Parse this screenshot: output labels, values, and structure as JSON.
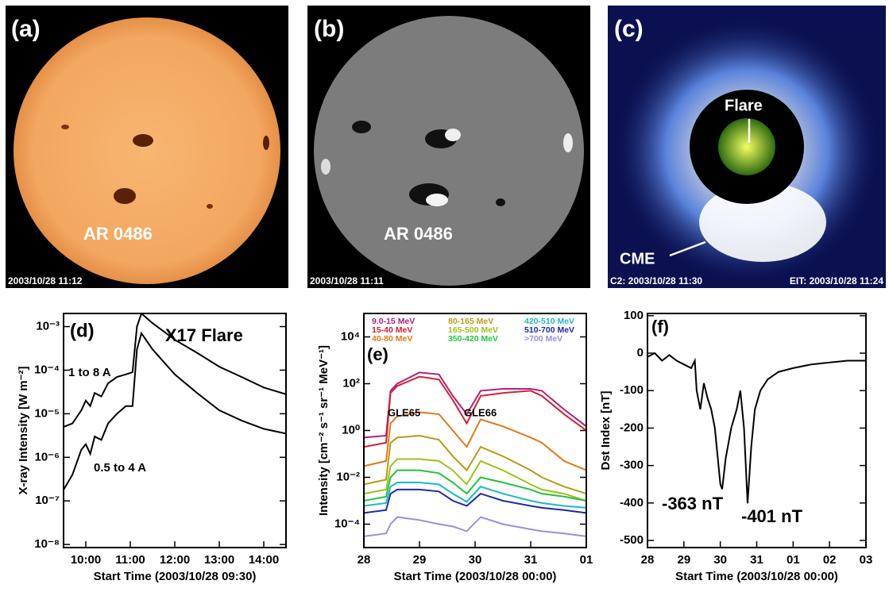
{
  "images": [
    {
      "label": "(a)",
      "annotation": "AR 0486",
      "timestamp": "2003/10/28 11:12"
    },
    {
      "label": "(b)",
      "annotation": "AR 0486",
      "timestamp": "2003/10/28 11:11"
    },
    {
      "label": "(c)",
      "annotations": [
        "Flare",
        "CME"
      ],
      "timestamps": [
        "C2: 2003/10/28 11:30",
        "EIT: 2003/10/28 11:24"
      ]
    }
  ],
  "chart_data": [
    {
      "type": "line",
      "log_y": true,
      "ylabel": "X-ray Intensity [W m⁻²]",
      "xlabel": "Start Time (2003/10/28 09:30)",
      "annotations": [
        "(d)",
        "X17 Flare"
      ],
      "xlim": [
        9.5,
        14.5
      ],
      "xticks": [
        {
          "value": 10,
          "label": "10:00"
        },
        {
          "value": 11,
          "label": "11:00"
        },
        {
          "value": 12,
          "label": "12:00"
        },
        {
          "value": 13,
          "label": "13:00"
        },
        {
          "value": 14,
          "label": "14:00"
        }
      ],
      "ylim": [
        8.5e-09,
        0.002
      ],
      "yticks": [
        {
          "value": 1e-08,
          "label": "10⁻⁸"
        },
        {
          "value": 1e-07,
          "label": "10⁻⁷"
        },
        {
          "value": 1e-06,
          "label": "10⁻⁶"
        },
        {
          "value": 1e-05,
          "label": "10⁻⁵"
        },
        {
          "value": 0.0001,
          "label": "10⁻⁴"
        },
        {
          "value": 0.001,
          "label": "10⁻³"
        }
      ],
      "x": [
        9.5,
        9.7,
        9.9,
        10.0,
        10.1,
        10.2,
        10.35,
        10.5,
        10.7,
        10.9,
        11.05,
        11.15,
        11.25,
        11.5,
        12,
        12.5,
        13,
        13.5,
        14,
        14.5
      ],
      "series": [
        {
          "name": "1 to 8 A",
          "color": "#000000",
          "values": [
            5e-06,
            6e-06,
            1.2e-05,
            2e-05,
            1.5e-05,
            3e-05,
            2.5e-05,
            5e-05,
            7e-05,
            8e-05,
            9e-05,
            0.001,
            0.002,
            0.0012,
            0.0005,
            0.00025,
            0.00012,
            7e-05,
            4e-05,
            2.8e-05
          ]
        },
        {
          "name": "0.5 to 4 A",
          "color": "#000000",
          "values": [
            1.8e-07,
            4e-07,
            1.5e-06,
            2e-06,
            1.2e-06,
            3e-06,
            2.5e-06,
            6e-06,
            1e-05,
            1.5e-05,
            1.5e-05,
            0.0003,
            0.0007,
            0.0003,
            8e-05,
            3e-05,
            1.2e-05,
            7e-06,
            4.5e-06,
            3.5e-06
          ]
        }
      ]
    },
    {
      "type": "line",
      "log_y": true,
      "ylabel": "Intensity [cm⁻² s⁻¹ sr⁻¹ MeV⁻¹]",
      "xlabel": "Start Time (2003/10/28 00:00)",
      "annotations": [
        "(e)",
        "GLE65",
        "GLE66"
      ],
      "xlim": [
        0,
        4
      ],
      "xticks": [
        {
          "value": 0,
          "label": "28"
        },
        {
          "value": 1,
          "label": "29"
        },
        {
          "value": 2,
          "label": "30"
        },
        {
          "value": 3,
          "label": "31"
        },
        {
          "value": 4,
          "label": "01"
        }
      ],
      "ylim": [
        1e-05,
        100000
      ],
      "yticks": [
        {
          "value": 0.0001,
          "label": "10⁻⁴"
        },
        {
          "value": 0.01,
          "label": "10⁻²"
        },
        {
          "value": 1,
          "label": "10⁰"
        },
        {
          "value": 100,
          "label": "10²"
        },
        {
          "value": 10000,
          "label": "10⁴"
        }
      ],
      "x": [
        0,
        0.4,
        0.48,
        0.6,
        1.0,
        1.35,
        1.6,
        1.85,
        2.1,
        2.5,
        3.0,
        3.2,
        3.6,
        4.0
      ],
      "series": [
        {
          "name": "9.0-15 MeV",
          "color": "#b0207f",
          "values": [
            0.5,
            0.6,
            50,
            100,
            300,
            250,
            30,
            5,
            50,
            60,
            60,
            50,
            8,
            1.5
          ]
        },
        {
          "name": "15-40 MeV",
          "color": "#d42030",
          "values": [
            0.2,
            0.3,
            40,
            80,
            200,
            150,
            20,
            2,
            30,
            40,
            50,
            30,
            5,
            1
          ]
        },
        {
          "name": "40-80 MeV",
          "color": "#e07818",
          "values": [
            0.03,
            0.05,
            2,
            4,
            6,
            5,
            1,
            0.2,
            3,
            1.5,
            0.5,
            0.3,
            0.05,
            0.02
          ]
        },
        {
          "name": "80-165 MeV",
          "color": "#b89a18",
          "values": [
            0.005,
            0.008,
            0.3,
            0.5,
            0.6,
            0.4,
            0.08,
            0.02,
            0.2,
            0.08,
            0.02,
            0.01,
            0.004,
            0.002
          ]
        },
        {
          "name": "165-500 MeV",
          "color": "#9cc21c",
          "values": [
            0.002,
            0.003,
            0.03,
            0.06,
            0.06,
            0.05,
            0.02,
            0.005,
            0.05,
            0.02,
            0.005,
            0.003,
            0.002,
            0.001
          ]
        },
        {
          "name": "350-420 MeV",
          "color": "#22c43a",
          "values": [
            0.001,
            0.0015,
            0.01,
            0.02,
            0.02,
            0.015,
            0.006,
            0.002,
            0.01,
            0.006,
            0.003,
            0.002,
            0.0015,
            0.001
          ]
        },
        {
          "name": "420-510 MeV",
          "color": "#20b8c0",
          "values": [
            0.0006,
            0.0008,
            0.004,
            0.006,
            0.006,
            0.005,
            0.002,
            0.0009,
            0.004,
            0.002,
            0.001,
            0.0008,
            0.0006,
            0.0005
          ]
        },
        {
          "name": "510-700 MeV",
          "color": "#1a2aa8",
          "values": [
            0.0003,
            0.0004,
            0.002,
            0.003,
            0.003,
            0.0025,
            0.001,
            0.0006,
            0.002,
            0.001,
            0.0006,
            0.0005,
            0.0004,
            0.0003
          ]
        },
        {
          "name": ">700 MeV",
          "color": "#9a8ee0",
          "values": [
            3e-05,
            4e-05,
            0.0001,
            0.0002,
            0.00015,
            0.0001,
            8e-05,
            5e-05,
            0.0002,
            0.0001,
            6e-05,
            5e-05,
            4e-05,
            3e-05
          ]
        }
      ]
    },
    {
      "type": "line",
      "log_y": false,
      "ylabel": "Dst Index [nT]",
      "xlabel": "Start Time (2003/10/28 00:00)",
      "annotations": [
        "(f)",
        "-363 nT",
        "-401 nT"
      ],
      "xlim": [
        0,
        6
      ],
      "xticks": [
        {
          "value": 0,
          "label": "28"
        },
        {
          "value": 1,
          "label": "29"
        },
        {
          "value": 2,
          "label": "30"
        },
        {
          "value": 3,
          "label": "31"
        },
        {
          "value": 4,
          "label": "01"
        },
        {
          "value": 5,
          "label": "02"
        },
        {
          "value": 6,
          "label": "03"
        }
      ],
      "ylim": [
        -519,
        106
      ],
      "yticks": [
        100,
        0,
        -100,
        -200,
        -300,
        -400,
        -500
      ],
      "x": [
        0,
        0.2,
        0.4,
        0.6,
        0.8,
        1.0,
        1.2,
        1.3,
        1.35,
        1.45,
        1.55,
        1.65,
        1.75,
        1.85,
        2.0,
        2.05,
        2.15,
        2.3,
        2.45,
        2.55,
        2.65,
        2.75,
        2.85,
        2.95,
        3.1,
        3.3,
        3.6,
        4.0,
        4.5,
        5.0,
        5.5,
        6.0
      ],
      "series": [
        {
          "color": "#000000",
          "values": [
            -10,
            0,
            -20,
            -5,
            -20,
            -30,
            -40,
            -20,
            -100,
            -150,
            -80,
            -120,
            -150,
            -200,
            -350,
            -363,
            -280,
            -200,
            -150,
            -100,
            -200,
            -401,
            -250,
            -150,
            -100,
            -70,
            -50,
            -40,
            -30,
            -25,
            -20,
            -20
          ]
        }
      ]
    }
  ]
}
